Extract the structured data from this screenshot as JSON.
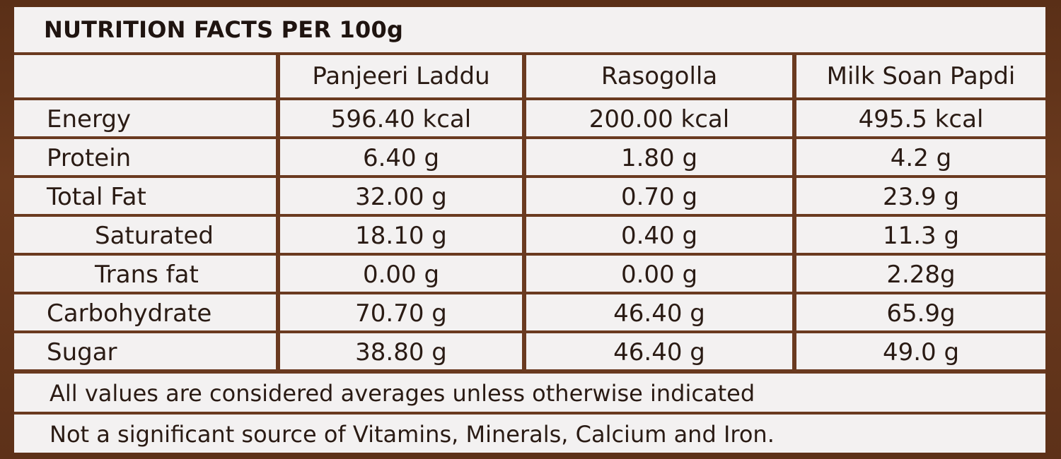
{
  "title": "NUTRITION FACTS PER 100g",
  "columns": [
    "",
    "Panjeeri Laddu",
    "Rasogolla",
    "Milk Soan Papdi"
  ],
  "rows": [
    {
      "label": "Energy",
      "values": [
        "596.40 kcal",
        "200.00 kcal",
        "495.5 kcal"
      ],
      "indent": false
    },
    {
      "label": "Protein",
      "values": [
        "6.40 g",
        "1.80 g",
        "4.2 g"
      ],
      "indent": false
    },
    {
      "label": "Total Fat",
      "values": [
        "32.00 g",
        "0.70 g",
        "23.9 g"
      ],
      "indent": false
    },
    {
      "label": "Saturated",
      "values": [
        "18.10 g",
        "0.40 g",
        "11.3 g"
      ],
      "indent": true
    },
    {
      "label": "Trans fat",
      "values": [
        "0.00 g",
        "0.00 g",
        "2.28g"
      ],
      "indent": true
    },
    {
      "label": "Carbohydrate",
      "values": [
        "70.70 g",
        "46.40 g",
        "65.9g"
      ],
      "indent": false
    },
    {
      "label": "Sugar",
      "values": [
        "38.80 g",
        "46.40 g",
        "49.0 g"
      ],
      "indent": false
    }
  ],
  "notes": [
    "All values are considered averages unless otherwise indicated",
    "Not a significant source of Vitamins, Minerals, Calcium and Iron."
  ]
}
